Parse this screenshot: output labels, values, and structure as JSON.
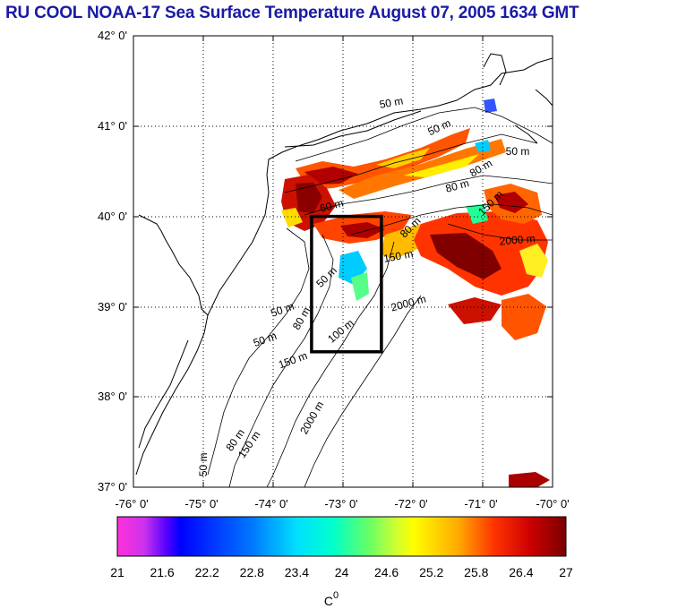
{
  "title": "RU COOL  NOAA-17 Sea Surface Temperature August 07, 2005 1634 GMT",
  "map": {
    "lat_labels": [
      "42° 0'",
      "41° 0'",
      "40° 0'",
      "39° 0'",
      "38° 0'",
      "37° 0'"
    ],
    "lon_labels": [
      "-76° 0'",
      "-75° 0'",
      "-74° 0'",
      "-73° 0'",
      "-72° 0'",
      "-71° 0'",
      "-70° 0'"
    ],
    "lat_range": [
      37,
      42
    ],
    "lon_range": [
      -76,
      -70
    ],
    "grid": "dotted",
    "study_box": {
      "lon_min": -73.45,
      "lon_max": -72.45,
      "lat_min": 38.5,
      "lat_max": 40.0
    },
    "contour_labels": [
      {
        "text": "50 m",
        "lon": -72.3,
        "lat": 41.22,
        "rot": -10
      },
      {
        "text": "50 m",
        "lon": -71.6,
        "lat": 40.95,
        "rot": -25
      },
      {
        "text": "50 m",
        "lon": -70.5,
        "lat": 40.68,
        "rot": 0
      },
      {
        "text": "80 m",
        "lon": -71.0,
        "lat": 40.5,
        "rot": -30
      },
      {
        "text": "80 m",
        "lon": -71.35,
        "lat": 40.3,
        "rot": -15
      },
      {
        "text": "150 m",
        "lon": -70.85,
        "lat": 40.12,
        "rot": -45
      },
      {
        "text": "60 m",
        "lon": -73.15,
        "lat": 40.08,
        "rot": -15
      },
      {
        "text": "80 m",
        "lon": -72.0,
        "lat": 39.85,
        "rot": -45
      },
      {
        "text": "150 m",
        "lon": -72.2,
        "lat": 39.52,
        "rot": -10
      },
      {
        "text": "2000 m",
        "lon": -70.5,
        "lat": 39.7,
        "rot": -5
      },
      {
        "text": "2000 m",
        "lon": -72.05,
        "lat": 39.0,
        "rot": -15
      },
      {
        "text": "50 m",
        "lon": -73.2,
        "lat": 39.3,
        "rot": -45
      },
      {
        "text": "50 m",
        "lon": -73.85,
        "lat": 38.93,
        "rot": -20
      },
      {
        "text": "80 m",
        "lon": -73.55,
        "lat": 38.85,
        "rot": -60
      },
      {
        "text": "100 m",
        "lon": -73.0,
        "lat": 38.7,
        "rot": -40
      },
      {
        "text": "50 m",
        "lon": -74.1,
        "lat": 38.6,
        "rot": -20
      },
      {
        "text": "150 m",
        "lon": -73.7,
        "lat": 38.37,
        "rot": -20
      },
      {
        "text": "2000 m",
        "lon": -73.4,
        "lat": 37.75,
        "rot": -60
      },
      {
        "text": "80 m",
        "lon": -74.5,
        "lat": 37.5,
        "rot": -55
      },
      {
        "text": "150 m",
        "lon": -74.3,
        "lat": 37.45,
        "rot": -55
      },
      {
        "text": "50 m",
        "lon": -74.95,
        "lat": 37.25,
        "rot": -90
      }
    ]
  },
  "colorbar": {
    "ticks": [
      "21",
      "21.6",
      "22.2",
      "22.8",
      "23.4",
      "24",
      "24.6",
      "25.2",
      "25.8",
      "26.4",
      "27"
    ],
    "range": [
      21,
      27
    ],
    "unit_base": "C",
    "unit_sup": "0"
  },
  "colors": {
    "title": "#1a1aa6",
    "colormap": [
      "#ff30d8",
      "#6600ff",
      "#0000ff",
      "#00aaff",
      "#00ffff",
      "#55ff99",
      "#ccff33",
      "#ffff00",
      "#ffaa00",
      "#ff3300",
      "#dd0000",
      "#880000"
    ]
  }
}
